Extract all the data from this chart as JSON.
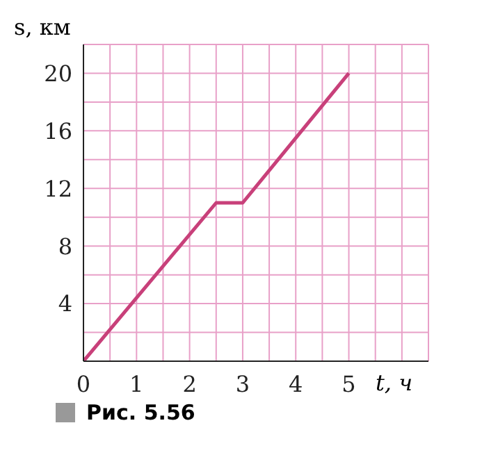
{
  "chart_data": {
    "type": "line",
    "xlabel": "t, ч",
    "ylabel": "s, км",
    "annotations": [
      "Рис. 5.56"
    ],
    "series": [
      {
        "color": "#c8407a",
        "x": [
          0,
          2.5,
          3,
          5
        ],
        "values": [
          0,
          11,
          11,
          20
        ]
      }
    ],
    "xlim": [
      0,
      6.5
    ],
    "ylim": [
      0,
      22
    ],
    "xticks": [
      0,
      {
        "value": 0.5,
        "label": null
      },
      1,
      {
        "value": 1.5,
        "label": null
      },
      2,
      {
        "value": 2.5,
        "label": null
      },
      3,
      {
        "value": 3.5,
        "label": null
      },
      4,
      {
        "value": 4.5,
        "label": null
      },
      5,
      {
        "value": 5.5,
        "label": null
      },
      {
        "value": 6,
        "label": null
      },
      {
        "value": 6.5,
        "label": null
      }
    ],
    "yticks": [
      {
        "value": 0,
        "label": null
      },
      {
        "value": 2,
        "label": null
      },
      4,
      {
        "value": 6,
        "label": null
      },
      8,
      {
        "value": 10,
        "label": null
      },
      12,
      {
        "value": 14,
        "label": null
      },
      16,
      {
        "value": 18,
        "label": null
      },
      20,
      {
        "value": 22,
        "label": null
      }
    ],
    "grid": true,
    "marker": "none",
    "line_style": "solid"
  }
}
